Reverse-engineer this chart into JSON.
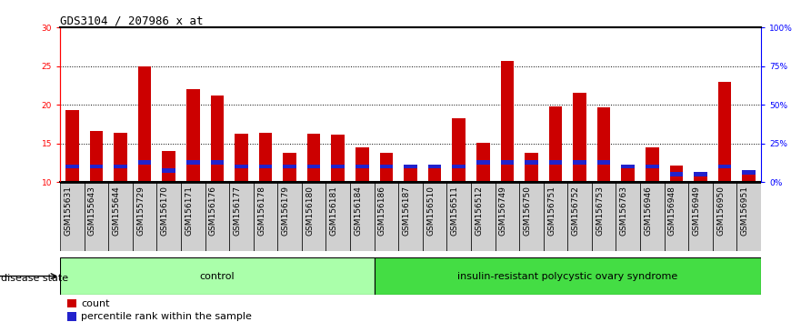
{
  "title": "GDS3104 / 207986_x_at",
  "samples": [
    "GSM155631",
    "GSM155643",
    "GSM155644",
    "GSM155729",
    "GSM156170",
    "GSM156171",
    "GSM156176",
    "GSM156177",
    "GSM156178",
    "GSM156179",
    "GSM156180",
    "GSM156181",
    "GSM156184",
    "GSM156186",
    "GSM156187",
    "GSM156510",
    "GSM156511",
    "GSM156512",
    "GSM156749",
    "GSM156750",
    "GSM156751",
    "GSM156752",
    "GSM156753",
    "GSM156763",
    "GSM156946",
    "GSM156948",
    "GSM156949",
    "GSM156950",
    "GSM156951"
  ],
  "count_values": [
    19.3,
    16.6,
    16.4,
    25.0,
    14.0,
    22.0,
    21.2,
    16.2,
    16.4,
    13.8,
    16.2,
    16.1,
    14.5,
    13.8,
    12.1,
    12.1,
    18.2,
    15.1,
    25.6,
    13.8,
    19.8,
    21.5,
    19.7,
    12.2,
    14.5,
    12.1,
    11.0,
    23.0,
    11.2
  ],
  "percentile_values": [
    12.0,
    12.0,
    12.0,
    12.5,
    11.5,
    12.5,
    12.5,
    12.0,
    12.0,
    12.0,
    12.0,
    12.0,
    12.0,
    12.0,
    12.0,
    12.0,
    12.0,
    12.5,
    12.5,
    12.5,
    12.5,
    12.5,
    12.5,
    12.0,
    12.0,
    11.0,
    11.0,
    12.0,
    11.2
  ],
  "control_count": 13,
  "disease_count": 16,
  "ylim_left": [
    10,
    30
  ],
  "yticks_left": [
    10,
    15,
    20,
    25,
    30
  ],
  "ytick_labels_right": [
    "0%",
    "25%",
    "50%",
    "75%",
    "100%"
  ],
  "yticks_right": [
    0,
    25,
    50,
    75,
    100
  ],
  "bar_color_count": "#cc0000",
  "bar_color_percentile": "#2222cc",
  "bar_width": 0.55,
  "control_label": "control",
  "disease_label": "insulin-resistant polycystic ovary syndrome",
  "disease_state_label": "disease state",
  "legend_count": "count",
  "legend_percentile": "percentile rank within the sample",
  "control_bg": "#aaffaa",
  "disease_bg": "#44dd44",
  "xlabel_bg": "#d0d0d0",
  "title_fontsize": 9,
  "tick_fontsize": 6.5,
  "label_fontsize": 8,
  "group_label_fontsize": 8
}
